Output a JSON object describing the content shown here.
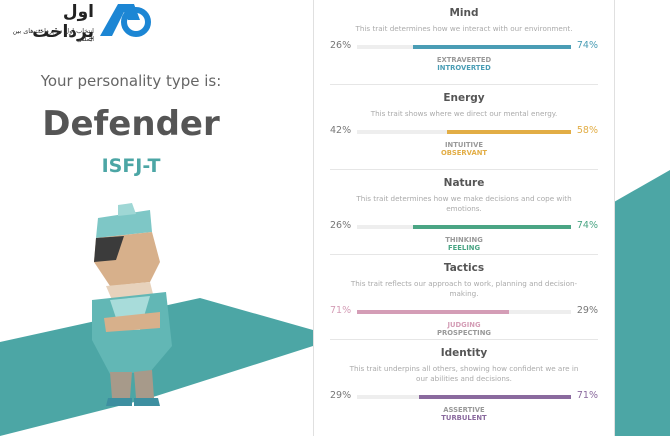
{
  "logo": {
    "title": "اول پرداخت",
    "tagline": "انتخاب اول در پرداخت‌های بین المللی"
  },
  "intro": "Your personality type is:",
  "type_name": "Defender",
  "type_code": "ISFJ-T",
  "traits": [
    {
      "name": "Mind",
      "description": "This trait determines how we interact with our environment.",
      "color": "#4a9db5",
      "left": {
        "value": 26,
        "label": "26%",
        "name": "EXTRAVERTED"
      },
      "right": {
        "value": 74,
        "label": "74%",
        "name": "INTROVERTED"
      }
    },
    {
      "name": "Energy",
      "description": "This trait shows where we direct our mental energy.",
      "color": "#e2ad45",
      "left": {
        "value": 42,
        "label": "42%",
        "name": "INTUITIVE"
      },
      "right": {
        "value": 58,
        "label": "58%",
        "name": "OBSERVANT"
      }
    },
    {
      "name": "Nature",
      "description": "This trait determines how we make decisions and cope with emotions.",
      "color": "#4aa584",
      "left": {
        "value": 26,
        "label": "26%",
        "name": "THINKING"
      },
      "right": {
        "value": 74,
        "label": "74%",
        "name": "FEELING"
      }
    },
    {
      "name": "Tactics",
      "description": "This trait reflects our approach to work, planning and decision-making.",
      "color": "#d49db6",
      "left": {
        "value": 71,
        "label": "71%",
        "name": "JUDGING"
      },
      "right": {
        "value": 29,
        "label": "29%",
        "name": "PROSPECTING"
      }
    },
    {
      "name": "Identity",
      "description": "This trait underpins all others, showing how confident we are in our abilities and decisions.",
      "color": "#8a6a9e",
      "left": {
        "value": 29,
        "label": "29%",
        "name": "ASSERTIVE"
      },
      "right": {
        "value": 71,
        "label": "71%",
        "name": "TURBULENT"
      }
    }
  ]
}
